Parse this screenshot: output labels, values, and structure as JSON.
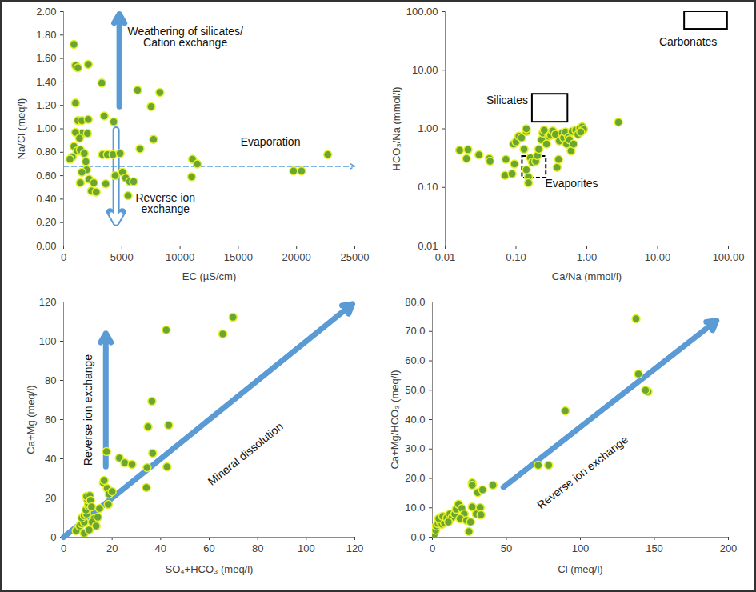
{
  "chart_data": [
    {
      "type": "scatter",
      "marker": "circle",
      "color": "#6aa632",
      "x_label": "EC (µS/cm)",
      "y_label": "Na/Cl (meq/l)",
      "xlim": [
        0,
        25000
      ],
      "xticks": [
        0,
        5000,
        10000,
        15000,
        20000,
        25000
      ],
      "ylim": [
        0,
        2
      ],
      "yticks": [
        {
          "value": 0,
          "label": "0.00"
        },
        {
          "value": 0.2,
          "label": "0.20"
        },
        {
          "value": 0.4,
          "label": "0.40"
        },
        {
          "value": 0.6,
          "label": "0.60"
        },
        {
          "value": 0.8,
          "label": "0.80"
        },
        {
          "value": 1,
          "label": "1.00"
        },
        {
          "value": 1.2,
          "label": "1.20"
        },
        {
          "value": 1.4,
          "label": "1.40"
        },
        {
          "value": 1.6,
          "label": "1.60"
        },
        {
          "value": 1.8,
          "label": "1.80"
        },
        {
          "value": 2,
          "label": "2.00"
        }
      ],
      "x": [
        888,
        1025,
        1230,
        2117,
        1025,
        1230,
        1570,
        1570,
        1025,
        1366,
        888,
        1160,
        1434,
        751,
        546,
        1776,
        1913,
        1980,
        1570,
        1434,
        2186,
        2596,
        2391,
        2800,
        2049,
        2117,
        3279,
        3484,
        3347,
        3757,
        4235,
        4850,
        4303,
        3620,
        4440,
        5055,
        5328,
        5670,
        6011,
        5533,
        6352,
        6557,
        7514,
        7719,
        8265,
        11066,
        11475,
        10997,
        19740,
        20423,
        22678
      ],
      "values": [
        1.72,
        1.54,
        1.52,
        1.55,
        1.22,
        1.07,
        1.07,
        0.96,
        0.97,
        0.92,
        0.85,
        0.81,
        0.82,
        0.76,
        0.74,
        0.79,
        0.72,
        0.65,
        0.63,
        0.54,
        0.57,
        0.54,
        0.47,
        0.46,
        0.96,
        1.08,
        1.39,
        1.11,
        0.78,
        0.78,
        0.78,
        0.79,
        1.06,
        0.53,
        0.6,
        0.63,
        0.58,
        0.55,
        0.55,
        0.43,
        1.33,
        0.83,
        1.19,
        0.91,
        1.31,
        0.74,
        0.7,
        0.59,
        0.64,
        0.64,
        0.78
      ],
      "annotations": [
        {
          "text": "Weathering of silicates/\nCation exchange",
          "x": 10450,
          "y": 1.78
        },
        {
          "text": "Evaporation",
          "x": 17760,
          "y": 0.89
        },
        {
          "text": "Reverse ion\nexchange",
          "x": 8740,
          "y": 0.36
        }
      ],
      "arrows": [
        {
          "x1": 4781,
          "y1": 1.19,
          "x2": 4781,
          "y2": 1.98,
          "line_style": "solid",
          "color": "#5b9bd5"
        },
        {
          "x1": 4508,
          "y1": 0.99,
          "x2": 4508,
          "y2": 0.2,
          "line_style": "outline",
          "color": "#5b9bd5"
        },
        {
          "x1": 0,
          "y1": 0.68,
          "x2": 25000,
          "y2": 0.68,
          "line_style": "dashed",
          "color": "#5b9bd5"
        }
      ]
    },
    {
      "type": "scatter",
      "marker": "circle",
      "color": "#6aa632",
      "log": true,
      "x_label": "Ca/Na (mmol/l)",
      "y_label": "HCO₃/Na (mmol/l)",
      "xlim": [
        0.01,
        100
      ],
      "xticks": [
        {
          "value": 0.01,
          "label": "0.01"
        },
        {
          "value": 0.1,
          "label": "0.10"
        },
        {
          "value": 1,
          "label": "1.00"
        },
        {
          "value": 10,
          "label": "10.00"
        },
        {
          "value": 100,
          "label": "100.00"
        }
      ],
      "ylim": [
        0.01,
        100
      ],
      "yticks": [
        {
          "value": 0.01,
          "label": "0.01"
        },
        {
          "value": 0.1,
          "label": "0.10"
        },
        {
          "value": 1,
          "label": "1.00"
        },
        {
          "value": 10,
          "label": "10.00"
        },
        {
          "value": 100,
          "label": "100.00"
        }
      ],
      "x": [
        0.016,
        0.021,
        0.02,
        0.03,
        0.042,
        0.043,
        0.07,
        0.072,
        0.088,
        0.095,
        0.092,
        0.1,
        0.11,
        0.13,
        0.12,
        0.14,
        0.14,
        0.15,
        0.15,
        0.14,
        0.16,
        0.17,
        0.19,
        0.2,
        0.21,
        0.23,
        0.24,
        0.25,
        0.27,
        0.29,
        0.31,
        0.33,
        0.36,
        0.38,
        0.4,
        0.41,
        0.45,
        0.47,
        0.5,
        0.52,
        0.55,
        0.57,
        0.6,
        0.62,
        0.65,
        0.7,
        0.75,
        0.8,
        0.86,
        0.9,
        0.82,
        2.8
      ],
      "values": [
        0.43,
        0.44,
        0.31,
        0.36,
        0.31,
        0.28,
        0.16,
        0.3,
        0.17,
        0.25,
        0.55,
        0.6,
        0.75,
        0.45,
        0.7,
        0.9,
        1.0,
        0.15,
        0.12,
        0.2,
        0.32,
        0.27,
        0.28,
        0.35,
        0.45,
        0.65,
        0.85,
        0.95,
        0.55,
        0.75,
        0.78,
        0.92,
        0.8,
        0.22,
        0.3,
        0.62,
        0.85,
        0.7,
        0.88,
        0.55,
        0.72,
        0.65,
        0.42,
        0.9,
        0.55,
        0.95,
        0.8,
        1.02,
        1.08,
        0.98,
        0.88,
        1.3
      ],
      "annotations": [
        {
          "text": "Carbonates",
          "x": 27,
          "y": 30
        },
        {
          "text": "Silicates",
          "x": 0.075,
          "y": 3.05
        },
        {
          "text": "Evaporites",
          "x": 0.61,
          "y": 0.116
        }
      ],
      "boxes": [
        {
          "x1": 24,
          "x2": 97,
          "y1": 50,
          "y2": 100,
          "line_style": "solid",
          "color": "#000000"
        },
        {
          "x1": 0.17,
          "x2": 0.54,
          "y1": 1.3,
          "y2": 3.9,
          "line_style": "solid",
          "color": "#000000"
        },
        {
          "x1": 0.123,
          "x2": 0.267,
          "y1": 0.145,
          "y2": 0.338,
          "line_style": "dashed",
          "color": "#000000"
        }
      ]
    },
    {
      "type": "scatter",
      "marker": "circle",
      "color": "#6aa632",
      "x_label": "SO₄+HCO₃ (meq/l)",
      "y_label": "Ca+Mg (meq/l)",
      "xlim": [
        0,
        120
      ],
      "xticks": [
        0,
        20,
        40,
        60,
        80,
        100,
        120
      ],
      "ylim": [
        0,
        120
      ],
      "yticks": [
        0,
        20,
        40,
        60,
        80,
        100,
        120
      ],
      "x": [
        5.9,
        5.2,
        6.6,
        7.5,
        8.5,
        7.5,
        8.5,
        9.5,
        9.2,
        10.2,
        10.2,
        9.8,
        9.5,
        10.8,
        11.1,
        11.5,
        12.5,
        11.8,
        14.1,
        13.4,
        8.5,
        10.5,
        14.8,
        16.4,
        16.7,
        18,
        18.7,
        20,
        18.4,
        17.7,
        23,
        25.2,
        28.2,
        34.1,
        34.4,
        34.8,
        36.4,
        36.7,
        42.6,
        43.3,
        42.3,
        65.6,
        69.8
      ],
      "values": [
        4.5,
        3.3,
        5.7,
        6.9,
        7.8,
        9.8,
        11,
        11.8,
        13.9,
        15.9,
        17.1,
        19.2,
        20.8,
        21.2,
        18.8,
        15.5,
        9.4,
        7.8,
        10.2,
        5.7,
        2.0,
        3.7,
        14.7,
        27.8,
        29.0,
        24.9,
        22,
        23.3,
        16.7,
        43.7,
        40.4,
        38,
        37.1,
        25.3,
        35.5,
        56.3,
        69.4,
        42.9,
        35.9,
        57.1,
        105.7,
        103.7,
        112.2
      ],
      "annotations": [
        {
          "text": "Mineral dissolution",
          "x": 75,
          "y": 42.4
        },
        {
          "text": "Reverse ion exchange",
          "x": 10.2,
          "y": 64.9
        }
      ],
      "arrows": [
        {
          "x1": 0,
          "y1": 0,
          "x2": 119,
          "y2": 119,
          "line_style": "solid",
          "color": "#5b9bd5"
        },
        {
          "x1": 17.4,
          "y1": 36,
          "x2": 17.4,
          "y2": 104,
          "line_style": "solid",
          "color": "#5b9bd5"
        }
      ]
    },
    {
      "type": "scatter",
      "marker": "circle",
      "color": "#6aa632",
      "x_label": "Cl (meq/l)",
      "y_label": "Ca+Mg/HCO₃ (meq/l)",
      "xlim": [
        0,
        200
      ],
      "xticks": [
        0,
        50,
        100,
        150,
        200
      ],
      "ylim": [
        0,
        80
      ],
      "yticks": [
        {
          "value": 0,
          "label": "0.0"
        },
        {
          "value": 10,
          "label": "10.0"
        },
        {
          "value": 20,
          "label": "20.0"
        },
        {
          "value": 30,
          "label": "30.0"
        },
        {
          "value": 40,
          "label": "40.0"
        },
        {
          "value": 50,
          "label": "50.0"
        },
        {
          "value": 60,
          "label": "60.0"
        },
        {
          "value": 70,
          "label": "70.0"
        },
        {
          "value": 80,
          "label": "80.0"
        }
      ],
      "x": [
        1.1,
        2.2,
        2.7,
        3.8,
        5.4,
        6.5,
        8.1,
        4.3,
        7,
        9.7,
        11.8,
        13.4,
        15.1,
        16.1,
        17.7,
        19.9,
        21.5,
        18.8,
        23.1,
        24.7,
        25.8,
        26.9,
        29.6,
        32.3,
        32.8,
        26.9,
        26.9,
        30.6,
        33.9,
        40.9,
        10.8,
        71.5,
        78.5,
        89.8,
        137.6,
        139.2,
        145.7,
        144
      ],
      "values": [
        0.8,
        2.4,
        3.8,
        4.6,
        5.2,
        4.4,
        4.9,
        6.3,
        7.1,
        6.5,
        7.9,
        6.8,
        7.9,
        9.5,
        11.2,
        9.8,
        7.9,
        6.3,
        5.7,
        1.9,
        5.2,
        10.3,
        7.9,
        10.1,
        7.6,
        18.5,
        17.7,
        15.2,
        16.1,
        17.7,
        5.2,
        24.5,
        24.5,
        43,
        74.3,
        55.5,
        49.5,
        50
      ],
      "annotations": [
        {
          "text": "Reverse ion exchange",
          "x": 101.6,
          "y": 22
        }
      ],
      "arrows": [
        {
          "x1": 48,
          "y1": 17,
          "x2": 192,
          "y2": 73.7,
          "line_style": "solid",
          "color": "#5b9bd5"
        }
      ]
    }
  ]
}
